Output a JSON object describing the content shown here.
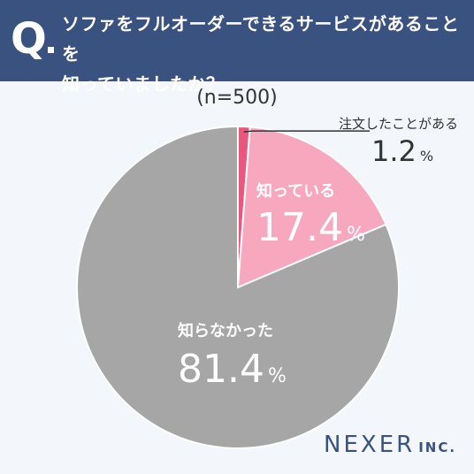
{
  "header": {
    "q_mark": "Q",
    "question_line1": "ソファをフルオーダーできるサービスがあることを",
    "question_line2": "知っていましたか？"
  },
  "sample_size": "(n=500)",
  "colors": {
    "header_bg": "#3a527f",
    "ordered": "#e8587e",
    "know": "#f7a8bf",
    "dont_know": "#a6a6a6",
    "brand": "#3a527f"
  },
  "chart_data": {
    "type": "pie",
    "title": "ソファをフルオーダーできるサービスがあることを知っていましたか？",
    "slices": [
      {
        "label": "注文したことがある",
        "value": 1.2,
        "color": "#e8587e"
      },
      {
        "label": "知っている",
        "value": 17.4,
        "color": "#f7a8bf"
      },
      {
        "label": "知らなかった",
        "value": 81.4,
        "color": "#a6a6a6"
      }
    ],
    "unit": "%"
  },
  "brand": {
    "name": "NEXER",
    "suffix": "INC."
  }
}
